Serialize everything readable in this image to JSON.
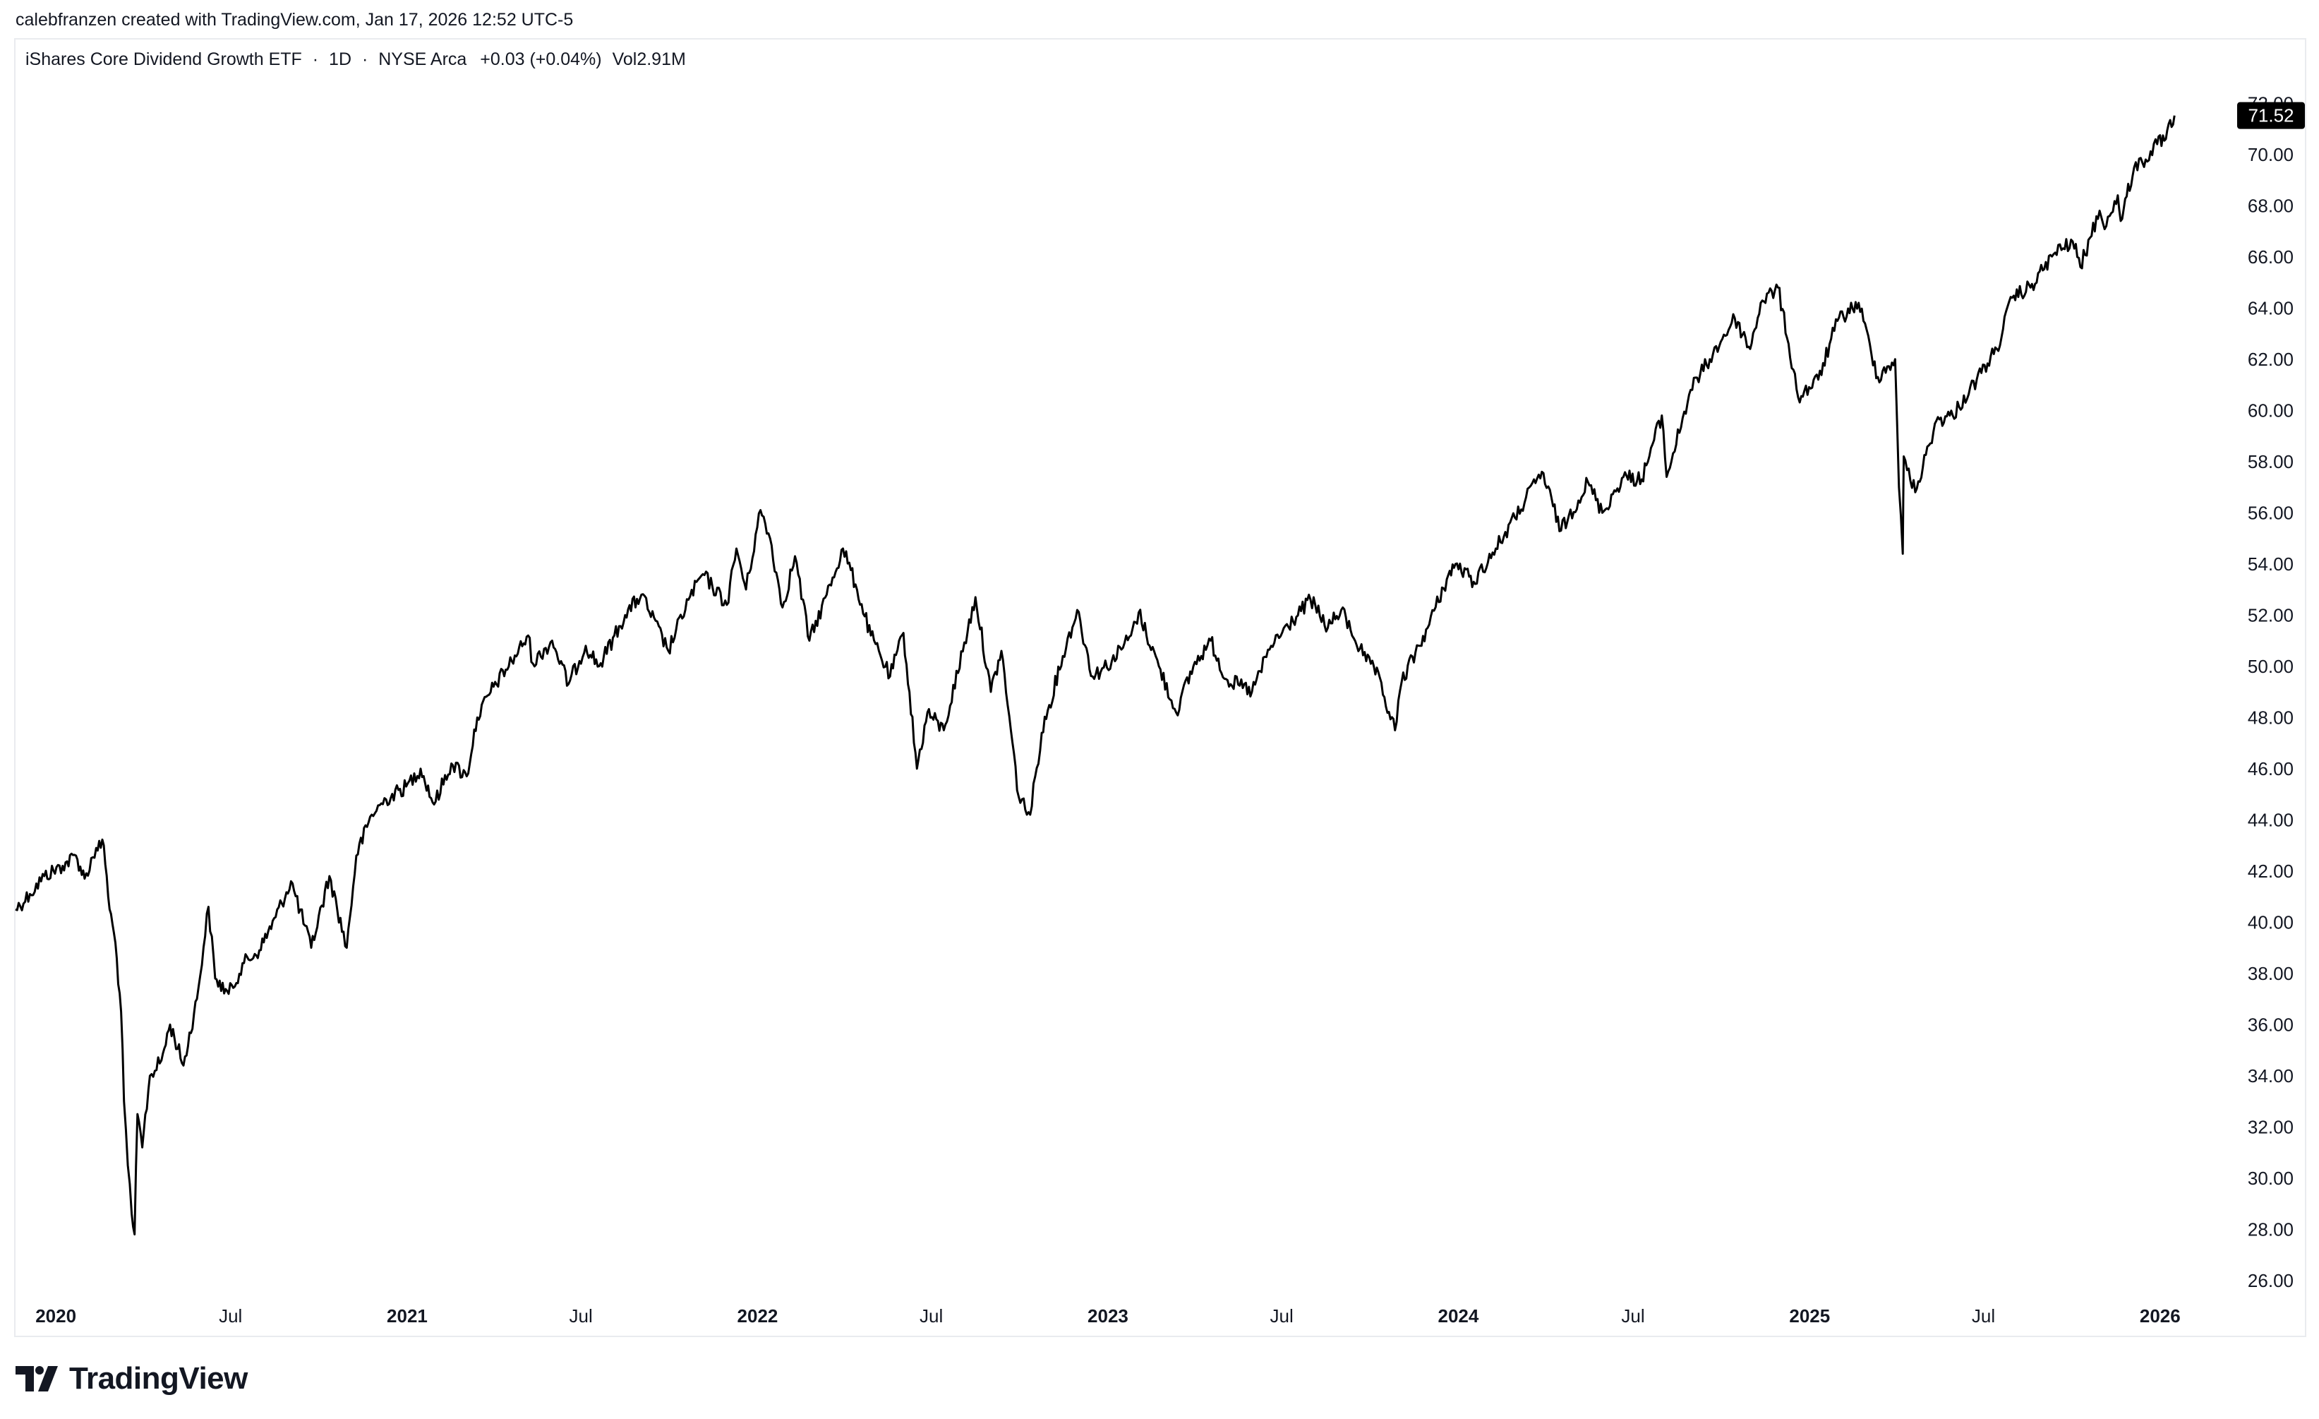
{
  "header": {
    "caption": "calebfranzen created with TradingView.com, Jan 17, 2026 12:52 UTC-5"
  },
  "legend": {
    "title": "iShares Core Dividend Growth ETF",
    "sep1": "·",
    "interval": "1D",
    "sep2": "·",
    "exchange": "NYSE Arca",
    "change": "+0.03 (+0.04%)",
    "volume": "Vol2.91M"
  },
  "footer": {
    "brand": "TradingView",
    "logo_icon": "tradingview-logo-icon"
  },
  "colors": {
    "line": "#000000",
    "price_badge_bg": "#000000",
    "price_badge_text": "#ffffff",
    "frame": "#e9ebef"
  },
  "chart_data": {
    "type": "line",
    "ylim": [
      25,
      73
    ],
    "yticks": [
      "26.00",
      "28.00",
      "30.00",
      "32.00",
      "34.00",
      "36.00",
      "38.00",
      "40.00",
      "42.00",
      "44.00",
      "46.00",
      "48.00",
      "50.00",
      "52.00",
      "54.00",
      "56.00",
      "58.00",
      "60.00",
      "62.00",
      "64.00",
      "66.00",
      "68.00",
      "70.00",
      "72.00"
    ],
    "xlim": [
      "2019-11-20",
      "2026-02-15"
    ],
    "xticks": [
      {
        "date": "2020-01-01",
        "label": "2020",
        "bold": true
      },
      {
        "date": "2020-07-01",
        "label": "Jul",
        "bold": false
      },
      {
        "date": "2021-01-01",
        "label": "2021",
        "bold": true
      },
      {
        "date": "2021-07-01",
        "label": "Jul",
        "bold": false
      },
      {
        "date": "2022-01-01",
        "label": "2022",
        "bold": true
      },
      {
        "date": "2022-07-01",
        "label": "Jul",
        "bold": false
      },
      {
        "date": "2023-01-01",
        "label": "2023",
        "bold": true
      },
      {
        "date": "2023-07-01",
        "label": "Jul",
        "bold": false
      },
      {
        "date": "2024-01-01",
        "label": "2024",
        "bold": true
      },
      {
        "date": "2024-07-01",
        "label": "Jul",
        "bold": false
      },
      {
        "date": "2025-01-01",
        "label": "2025",
        "bold": true
      },
      {
        "date": "2025-07-01",
        "label": "Jul",
        "bold": false
      },
      {
        "date": "2026-01-01",
        "label": "2026",
        "bold": true
      }
    ],
    "last_price": "71.52",
    "last_value": 71.52,
    "series": [
      {
        "points": [
          [
            "2019-11-20",
            40.5
          ],
          [
            "2019-12-05",
            41.1
          ],
          [
            "2019-12-20",
            41.8
          ],
          [
            "2020-01-08",
            42.2
          ],
          [
            "2020-01-22",
            42.6
          ],
          [
            "2020-01-31",
            41.7
          ],
          [
            "2020-02-12",
            42.9
          ],
          [
            "2020-02-20",
            43.0
          ],
          [
            "2020-02-26",
            40.5
          ],
          [
            "2020-03-03",
            39.2
          ],
          [
            "2020-03-09",
            36.5
          ],
          [
            "2020-03-12",
            33.0
          ],
          [
            "2020-03-16",
            30.5
          ],
          [
            "2020-03-20",
            28.6
          ],
          [
            "2020-03-23",
            27.8
          ],
          [
            "2020-03-26",
            32.5
          ],
          [
            "2020-03-31",
            31.2
          ],
          [
            "2020-04-08",
            34.0
          ],
          [
            "2020-04-20",
            34.6
          ],
          [
            "2020-04-29",
            36.0
          ],
          [
            "2020-05-13",
            34.4
          ],
          [
            "2020-05-27",
            37.0
          ],
          [
            "2020-06-08",
            40.6
          ],
          [
            "2020-06-15",
            37.8
          ],
          [
            "2020-06-29",
            37.2
          ],
          [
            "2020-07-15",
            38.4
          ],
          [
            "2020-07-31",
            38.9
          ],
          [
            "2020-08-17",
            40.2
          ],
          [
            "2020-09-02",
            41.6
          ],
          [
            "2020-09-23",
            39.0
          ],
          [
            "2020-10-12",
            41.8
          ],
          [
            "2020-10-30",
            39.0
          ],
          [
            "2020-11-09",
            42.6
          ],
          [
            "2020-11-25",
            44.2
          ],
          [
            "2020-12-10",
            44.8
          ],
          [
            "2020-12-31",
            45.3
          ],
          [
            "2021-01-15",
            46.0
          ],
          [
            "2021-01-29",
            44.6
          ],
          [
            "2021-02-16",
            46.2
          ],
          [
            "2021-03-04",
            45.7
          ],
          [
            "2021-03-15",
            48.0
          ],
          [
            "2021-04-01",
            49.2
          ],
          [
            "2021-04-20",
            50.2
          ],
          [
            "2021-05-07",
            51.2
          ],
          [
            "2021-05-12",
            50.1
          ],
          [
            "2021-06-01",
            51.0
          ],
          [
            "2021-06-18",
            49.3
          ],
          [
            "2021-07-06",
            50.8
          ],
          [
            "2021-07-20",
            50.0
          ],
          [
            "2021-08-16",
            52.0
          ],
          [
            "2021-09-02",
            52.8
          ],
          [
            "2021-09-30",
            50.6
          ],
          [
            "2021-10-21",
            52.6
          ],
          [
            "2021-11-05",
            53.6
          ],
          [
            "2021-11-30",
            52.4
          ],
          [
            "2021-12-10",
            54.6
          ],
          [
            "2021-12-20",
            53.0
          ],
          [
            "2022-01-04",
            56.1
          ],
          [
            "2022-01-14",
            55.0
          ],
          [
            "2022-01-27",
            52.3
          ],
          [
            "2022-02-09",
            54.3
          ],
          [
            "2022-02-24",
            51.0
          ],
          [
            "2022-03-14",
            52.8
          ],
          [
            "2022-03-31",
            54.6
          ],
          [
            "2022-04-13",
            53.2
          ],
          [
            "2022-04-29",
            51.2
          ],
          [
            "2022-05-19",
            49.6
          ],
          [
            "2022-06-02",
            51.3
          ],
          [
            "2022-06-16",
            46.0
          ],
          [
            "2022-06-27",
            48.2
          ],
          [
            "2022-07-14",
            47.5
          ],
          [
            "2022-08-16",
            52.7
          ],
          [
            "2022-09-01",
            49.0
          ],
          [
            "2022-09-12",
            50.6
          ],
          [
            "2022-09-30",
            44.9
          ],
          [
            "2022-10-12",
            44.2
          ],
          [
            "2022-10-24",
            47.4
          ],
          [
            "2022-11-15",
            50.4
          ],
          [
            "2022-11-30",
            52.2
          ],
          [
            "2022-12-16",
            49.6
          ],
          [
            "2023-01-05",
            50.2
          ],
          [
            "2023-01-25",
            51.2
          ],
          [
            "2023-02-02",
            52.1
          ],
          [
            "2023-02-23",
            50.0
          ],
          [
            "2023-03-13",
            48.2
          ],
          [
            "2023-03-31",
            50.0
          ],
          [
            "2023-04-18",
            51.0
          ],
          [
            "2023-05-04",
            49.5
          ],
          [
            "2023-05-31",
            49.0
          ],
          [
            "2023-06-20",
            50.8
          ],
          [
            "2023-07-31",
            52.6
          ],
          [
            "2023-08-18",
            51.5
          ],
          [
            "2023-09-01",
            52.2
          ],
          [
            "2023-09-27",
            50.2
          ],
          [
            "2023-10-05",
            50.0
          ],
          [
            "2023-10-27",
            47.5
          ],
          [
            "2023-11-03",
            49.4
          ],
          [
            "2023-11-30",
            51.5
          ],
          [
            "2023-12-20",
            53.4
          ],
          [
            "2023-12-29",
            54.0
          ],
          [
            "2024-01-17",
            53.3
          ],
          [
            "2024-02-09",
            54.6
          ],
          [
            "2024-02-29",
            55.8
          ],
          [
            "2024-03-28",
            57.6
          ],
          [
            "2024-04-17",
            55.3
          ],
          [
            "2024-05-15",
            57.2
          ],
          [
            "2024-05-30",
            56.0
          ],
          [
            "2024-06-21",
            57.4
          ],
          [
            "2024-07-10",
            57.3
          ],
          [
            "2024-07-31",
            59.8
          ],
          [
            "2024-08-05",
            57.4
          ],
          [
            "2024-08-30",
            60.8
          ],
          [
            "2024-09-19",
            62.0
          ],
          [
            "2024-10-15",
            63.6
          ],
          [
            "2024-10-31",
            62.4
          ],
          [
            "2024-11-11",
            64.2
          ],
          [
            "2024-11-29",
            64.8
          ],
          [
            "2024-12-10",
            62.6
          ],
          [
            "2024-12-20",
            60.5
          ],
          [
            "2025-01-10",
            61.2
          ],
          [
            "2025-01-30",
            63.5
          ],
          [
            "2025-02-21",
            64.2
          ],
          [
            "2025-03-13",
            61.3
          ],
          [
            "2025-03-31",
            62.0
          ],
          [
            "2025-04-04",
            57.0
          ],
          [
            "2025-04-08",
            54.4
          ],
          [
            "2025-04-09",
            58.2
          ],
          [
            "2025-04-21",
            56.8
          ],
          [
            "2025-05-13",
            59.6
          ],
          [
            "2025-05-30",
            59.8
          ],
          [
            "2025-06-24",
            61.2
          ],
          [
            "2025-07-15",
            62.4
          ],
          [
            "2025-07-31",
            64.4
          ],
          [
            "2025-08-19",
            64.8
          ],
          [
            "2025-09-12",
            66.1
          ],
          [
            "2025-10-02",
            66.6
          ],
          [
            "2025-10-10",
            65.6
          ],
          [
            "2025-10-30",
            67.8
          ],
          [
            "2025-11-06",
            67.2
          ],
          [
            "2025-11-18",
            68.4
          ],
          [
            "2025-11-21",
            67.4
          ],
          [
            "2025-12-05",
            69.5
          ],
          [
            "2025-12-17",
            69.8
          ],
          [
            "2025-12-29",
            70.4
          ],
          [
            "2026-01-07",
            70.6
          ],
          [
            "2026-01-16",
            71.52
          ]
        ]
      }
    ]
  }
}
